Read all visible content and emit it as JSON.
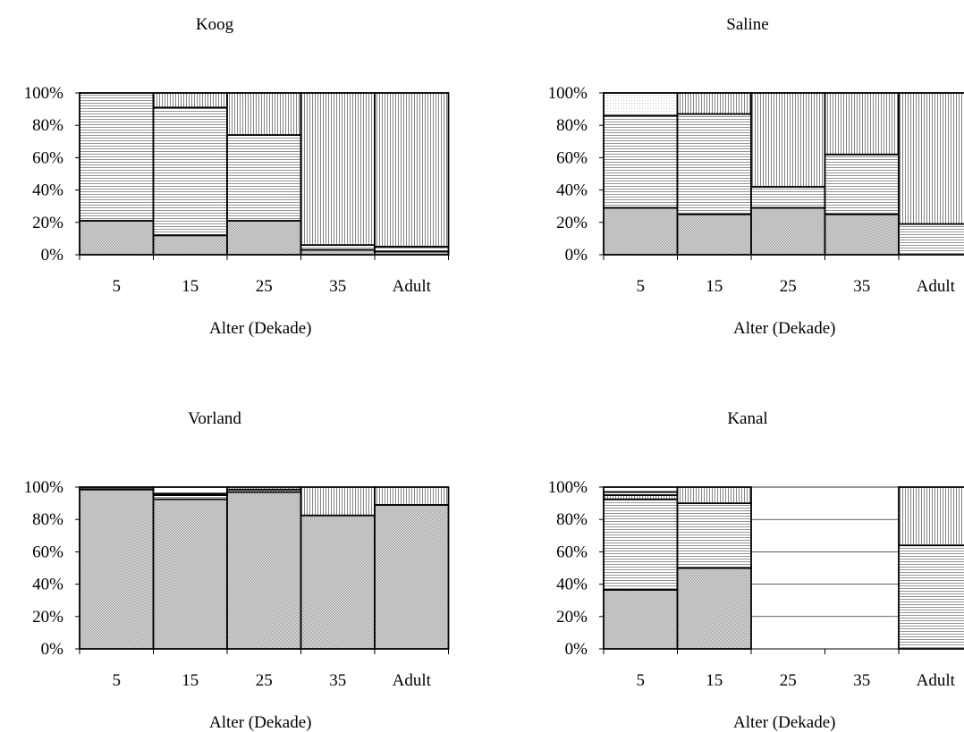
{
  "yticks": [
    "0%",
    "20%",
    "40%",
    "60%",
    "80%",
    "100%"
  ],
  "chart_data": [
    {
      "type": "bar",
      "stacked": "100%",
      "title": "Koog",
      "xlabel": "Alter (Dekade)",
      "ylabel": "",
      "ylim": [
        0,
        100
      ],
      "categories": [
        "5",
        "15",
        "25",
        "35",
        "Adult"
      ],
      "segments": [
        [
          {
            "value": 21,
            "pattern": "diag"
          },
          {
            "value": 79,
            "pattern": "horiz"
          }
        ],
        [
          {
            "value": 12,
            "pattern": "diag"
          },
          {
            "value": 79,
            "pattern": "horiz"
          },
          {
            "value": 9,
            "pattern": "vert"
          }
        ],
        [
          {
            "value": 21,
            "pattern": "diag"
          },
          {
            "value": 53,
            "pattern": "horiz"
          },
          {
            "value": 26,
            "pattern": "vert"
          }
        ],
        [
          {
            "value": 3,
            "pattern": "diag"
          },
          {
            "value": 3,
            "pattern": "horiz"
          },
          {
            "value": 94,
            "pattern": "vert"
          }
        ],
        [
          {
            "value": 2,
            "pattern": "diag"
          },
          {
            "value": 3,
            "pattern": "horiz"
          },
          {
            "value": 95,
            "pattern": "vert"
          }
        ]
      ]
    },
    {
      "type": "bar",
      "stacked": "100%",
      "title": "Saline",
      "xlabel": "Alter (Dekade)",
      "ylabel": "",
      "ylim": [
        0,
        100
      ],
      "categories": [
        "5",
        "15",
        "25",
        "35",
        "Adult"
      ],
      "segments": [
        [
          {
            "value": 29,
            "pattern": "diag"
          },
          {
            "value": 57,
            "pattern": "horiz"
          },
          {
            "value": 14,
            "pattern": "dots"
          }
        ],
        [
          {
            "value": 25,
            "pattern": "diag"
          },
          {
            "value": 62,
            "pattern": "horiz"
          },
          {
            "value": 13,
            "pattern": "vert"
          }
        ],
        [
          {
            "value": 29,
            "pattern": "diag"
          },
          {
            "value": 13,
            "pattern": "horiz"
          },
          {
            "value": 58,
            "pattern": "vert"
          }
        ],
        [
          {
            "value": 25,
            "pattern": "diag"
          },
          {
            "value": 37,
            "pattern": "horiz"
          },
          {
            "value": 38,
            "pattern": "vert"
          }
        ],
        [
          {
            "value": 19,
            "pattern": "horiz"
          },
          {
            "value": 81,
            "pattern": "vert"
          }
        ]
      ]
    },
    {
      "type": "bar",
      "stacked": "100%",
      "title": "Vorland",
      "xlabel": "Alter (Dekade)",
      "ylabel": "",
      "ylim": [
        0,
        100
      ],
      "categories": [
        "5",
        "15",
        "25",
        "35",
        "Adult"
      ],
      "segments": [
        [
          {
            "value": 98.5,
            "pattern": "diag"
          },
          {
            "value": 1.5,
            "pattern": "dark"
          }
        ],
        [
          {
            "value": 92.5,
            "pattern": "diag"
          },
          {
            "value": 2.5,
            "pattern": "horiz"
          },
          {
            "value": 1,
            "pattern": "vert"
          },
          {
            "value": 4,
            "pattern": "blank"
          }
        ],
        [
          {
            "value": 97,
            "pattern": "diag"
          },
          {
            "value": 1.5,
            "pattern": "horiz"
          },
          {
            "value": 1.5,
            "pattern": "vert"
          }
        ],
        [
          {
            "value": 82.5,
            "pattern": "diag"
          },
          {
            "value": 17.5,
            "pattern": "vert"
          }
        ],
        [
          {
            "value": 89,
            "pattern": "diag"
          },
          {
            "value": 11,
            "pattern": "vert"
          }
        ]
      ]
    },
    {
      "type": "bar",
      "stacked": "100%",
      "title": "Kanal",
      "xlabel": "Alter (Dekade)",
      "ylabel": "",
      "ylim": [
        0,
        100
      ],
      "grid": true,
      "categories": [
        "5",
        "15",
        "25",
        "35",
        "Adult"
      ],
      "segments": [
        [
          {
            "value": 36.5,
            "pattern": "diag"
          },
          {
            "value": 56,
            "pattern": "horiz"
          },
          {
            "value": 2.5,
            "pattern": "vert"
          },
          {
            "value": 2,
            "pattern": "horiz"
          },
          {
            "value": 3,
            "pattern": "blank"
          }
        ],
        [
          {
            "value": 50,
            "pattern": "diag"
          },
          {
            "value": 40,
            "pattern": "horiz"
          },
          {
            "value": 10,
            "pattern": "vert"
          }
        ],
        [],
        [],
        [
          {
            "value": 64,
            "pattern": "horiz"
          },
          {
            "value": 36,
            "pattern": "vert"
          }
        ]
      ]
    }
  ]
}
